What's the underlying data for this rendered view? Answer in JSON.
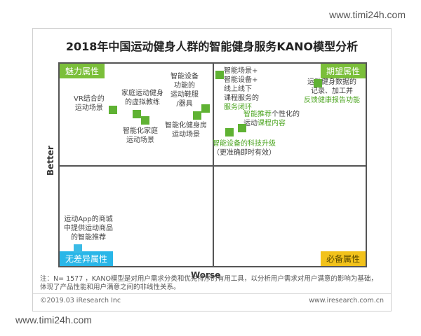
{
  "watermark": "www.timi24h.com",
  "title": "2018年中国运动健身人群的智能健身服务KANO模型分析",
  "axes": {
    "y": "Better",
    "x": "Worse"
  },
  "quadrants": {
    "charm": "魅力属性",
    "expect": "期望属性",
    "indifferent": "无差异属性",
    "must": "必备属性"
  },
  "items": {
    "vr": [
      "VR结合的",
      "运动场景"
    ],
    "home_trainer": [
      "家庭运动健身",
      "的虚拟教练"
    ],
    "smart_home_scene": [
      "智能化家庭",
      "运动场景"
    ],
    "smart_gear": [
      "智能设备",
      "功能的",
      "运动鞋服",
      "/器具"
    ],
    "smart_gym_scene": [
      "智能化健身房",
      "运动场景"
    ],
    "closed_loop": [
      "智能场景+",
      "智能设备+",
      "线上线下",
      "课程服务的"
    ],
    "closed_loop_hl": "服务闭环",
    "recommend_hl": "智能推荐",
    "recommend_rest": "个性化的",
    "recommend_line2": "运动",
    "recommend_line2_hl": "课程内容",
    "upgrade_hl": "智能设备的科技升级",
    "upgrade_line2": "（更准确即时有效）",
    "data_record": [
      "运动健身数据的",
      "记录、加工并"
    ],
    "data_record_hl": "反馈健康报告功能",
    "mall": [
      "运动App的商城",
      "中提供运动商品",
      "的智能推荐"
    ]
  },
  "note": "注：N= 1577 ，KANO模型是对用户需求分类和优先排序的有用工具，以分析用户需求对用户满意的影响为基础，体现了产品性能和用户满意之间的非线性关系。",
  "footer": {
    "left": "©2019.03  iResearch Inc",
    "right": "www.iresearch.com.cn"
  }
}
